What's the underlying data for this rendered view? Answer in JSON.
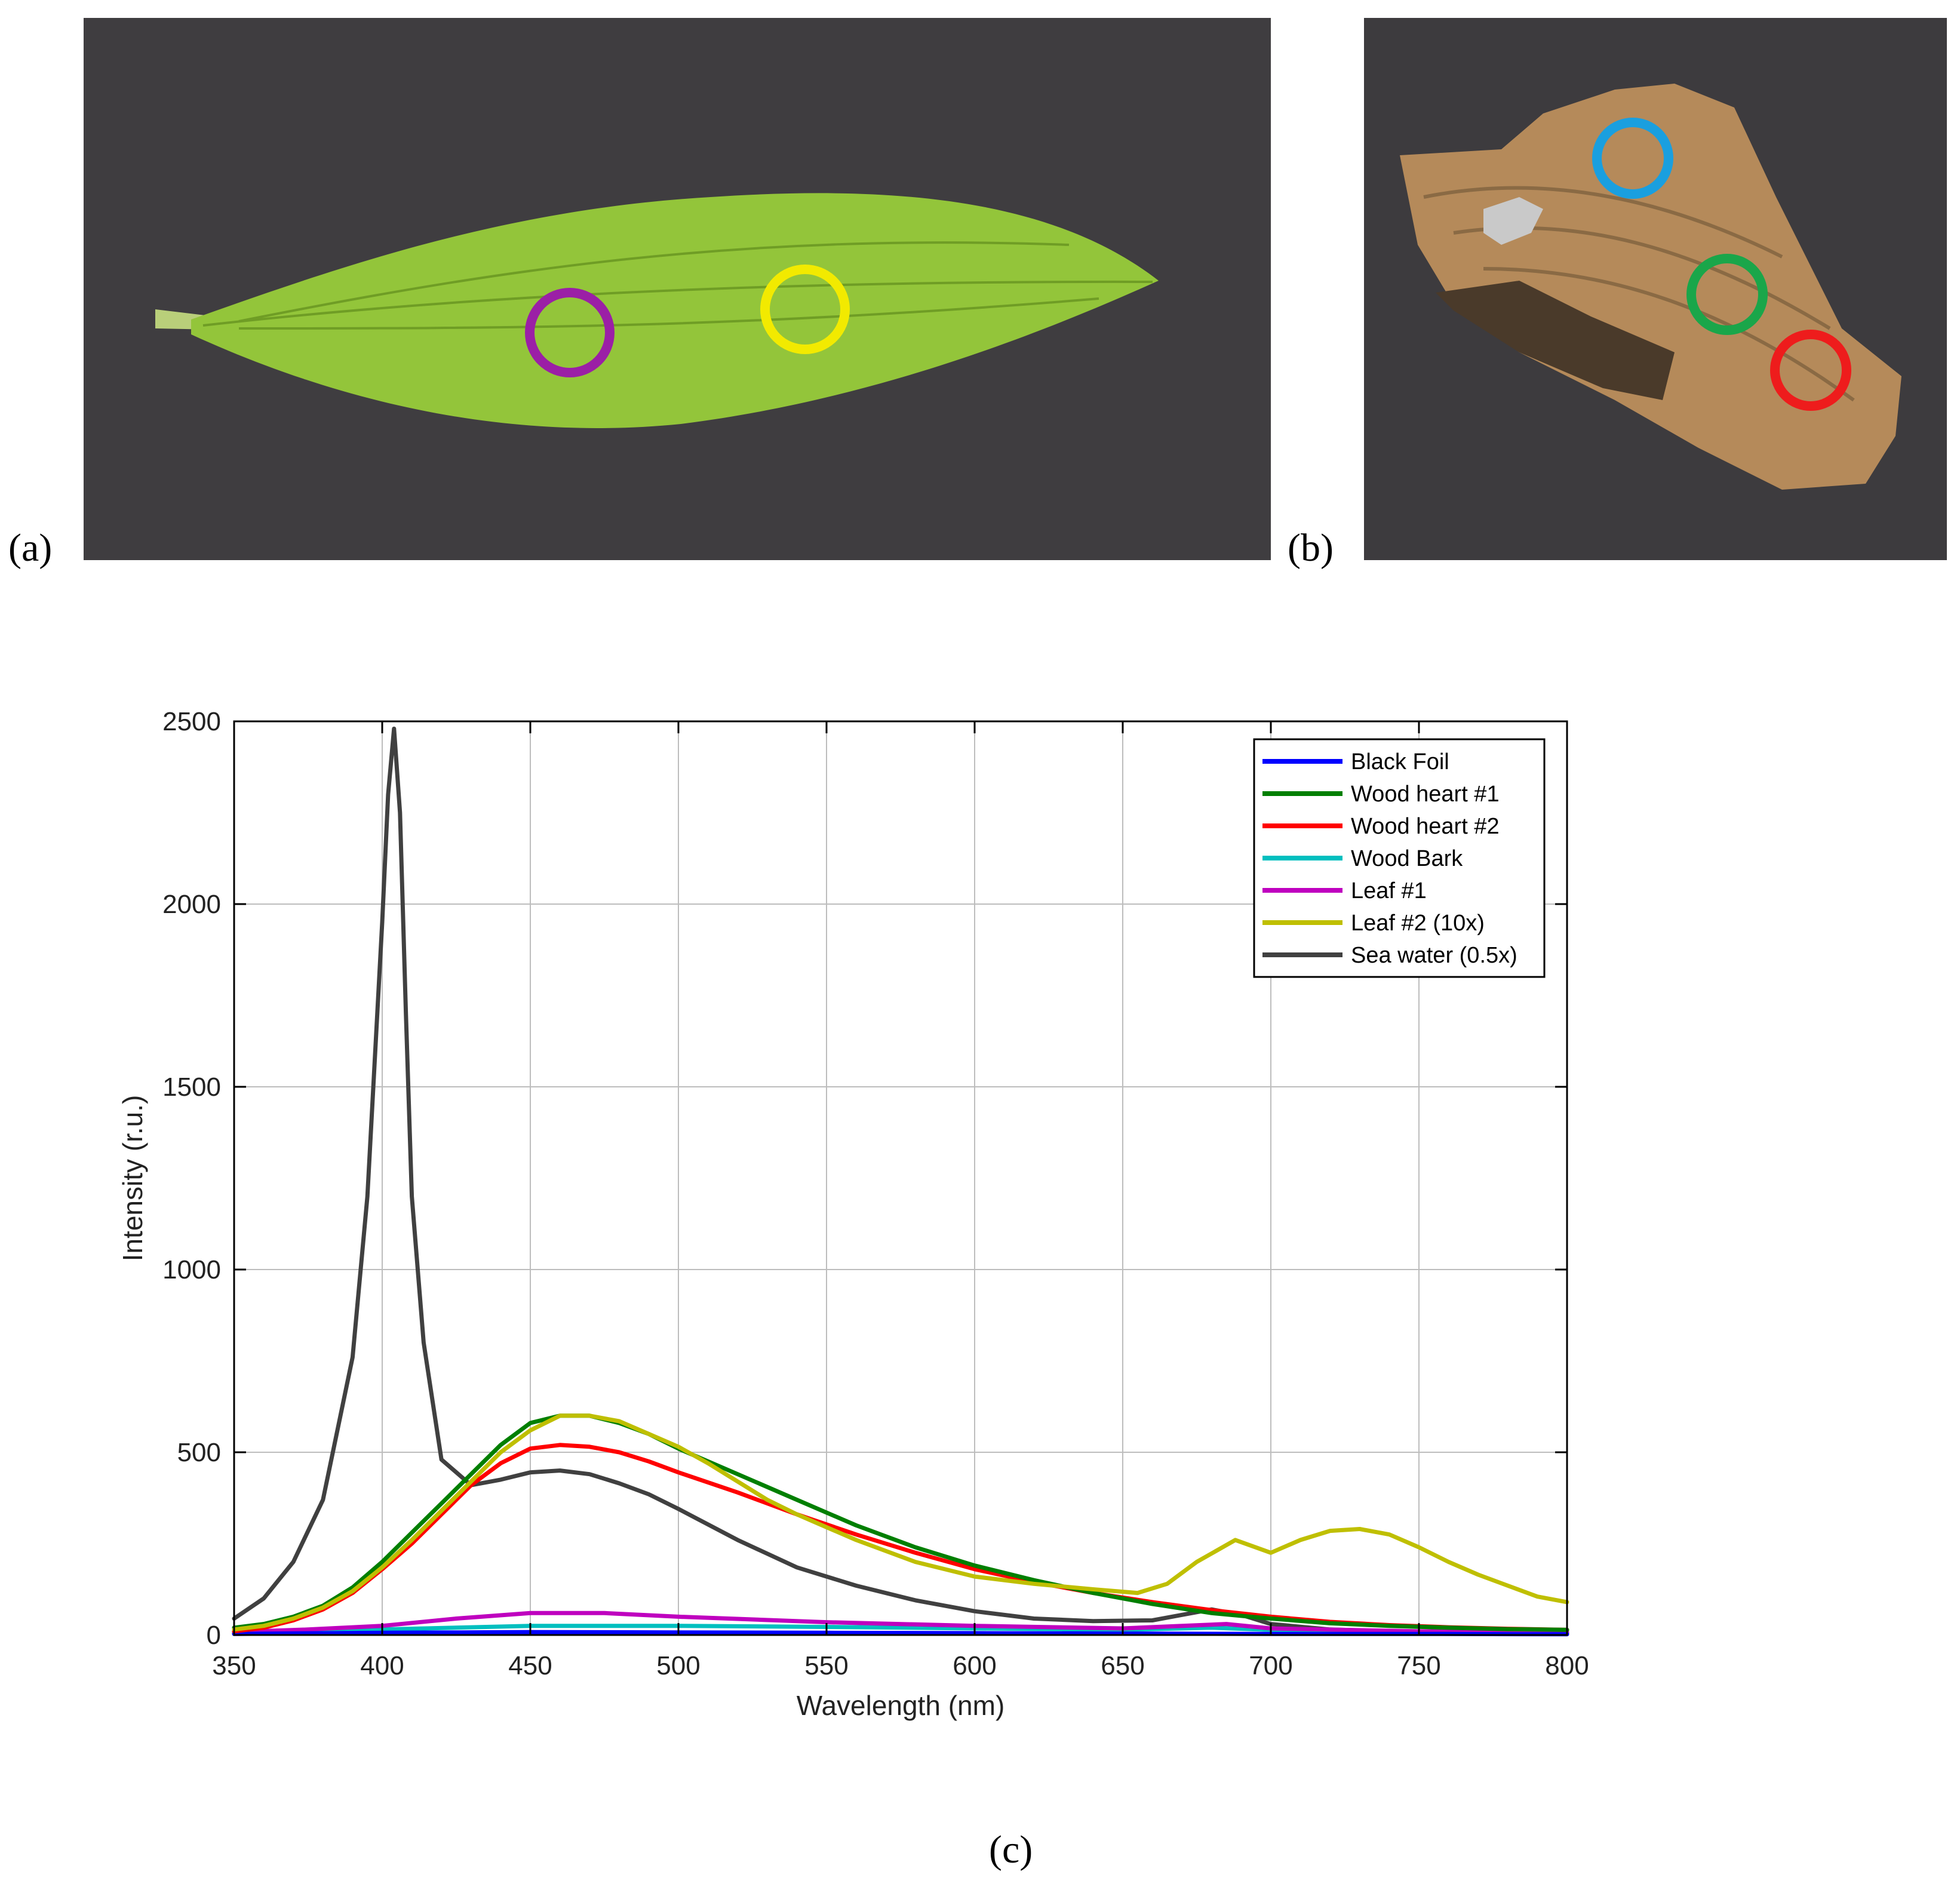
{
  "panels": {
    "a_label": "(a)",
    "b_label": "(b)",
    "c_label": "(c)"
  },
  "photo_a": {
    "subject": "leaf",
    "background_color": "#3f3d40",
    "leaf_color": "#93c53a",
    "markers": [
      {
        "name": "leaf-1-marker",
        "color": "#9b1fa6"
      },
      {
        "name": "leaf-2-marker",
        "color": "#f2ea00"
      }
    ]
  },
  "photo_b": {
    "subject": "wood",
    "background_color": "#3d3b3e",
    "wood_color": "#b58a5a",
    "markers": [
      {
        "name": "wood-bark-marker",
        "color": "#1a9fdf"
      },
      {
        "name": "wood-heart-1-marker",
        "color": "#1aa64a"
      },
      {
        "name": "wood-heart-2-marker",
        "color": "#ee1c1c"
      }
    ]
  },
  "chart_data": {
    "type": "line",
    "xlabel": "Wavelength (nm)",
    "ylabel": "Intensity (r.u.)",
    "xlim": [
      350,
      800
    ],
    "ylim": [
      0,
      2500
    ],
    "xticks": [
      350,
      400,
      450,
      500,
      550,
      600,
      650,
      700,
      750,
      800
    ],
    "yticks": [
      0,
      500,
      1000,
      1500,
      2000,
      2500
    ],
    "grid": true,
    "legend_position": "top-right",
    "series": [
      {
        "name": "Black Foil",
        "color": "#0000ff",
        "x": [
          350,
          400,
          450,
          500,
          550,
          600,
          650,
          700,
          750,
          800
        ],
        "y": [
          3,
          6,
          8,
          7,
          6,
          5,
          4,
          3,
          3,
          2
        ]
      },
      {
        "name": "Wood heart #1",
        "color": "#007f00",
        "x": [
          350,
          360,
          370,
          380,
          390,
          400,
          410,
          420,
          430,
          440,
          450,
          460,
          470,
          480,
          490,
          500,
          520,
          540,
          560,
          580,
          600,
          620,
          640,
          660,
          680,
          700,
          720,
          740,
          760,
          780,
          800
        ],
        "y": [
          20,
          30,
          50,
          80,
          130,
          200,
          280,
          360,
          440,
          520,
          580,
          600,
          600,
          580,
          550,
          510,
          440,
          370,
          300,
          240,
          190,
          150,
          115,
          85,
          60,
          45,
          32,
          25,
          20,
          16,
          14
        ]
      },
      {
        "name": "Wood heart #2",
        "color": "#ff0000",
        "x": [
          350,
          360,
          370,
          380,
          390,
          400,
          410,
          420,
          430,
          440,
          450,
          460,
          470,
          480,
          490,
          500,
          520,
          540,
          560,
          580,
          600,
          620,
          640,
          660,
          680,
          700,
          720,
          740,
          760,
          780,
          800
        ],
        "y": [
          10,
          20,
          40,
          70,
          115,
          180,
          250,
          330,
          410,
          470,
          510,
          520,
          515,
          500,
          475,
          445,
          390,
          330,
          275,
          225,
          180,
          145,
          115,
          90,
          68,
          50,
          36,
          27,
          21,
          17,
          14
        ]
      },
      {
        "name": "Wood Bark",
        "color": "#00bfbf",
        "x": [
          350,
          400,
          450,
          500,
          550,
          600,
          650,
          680,
          700,
          750,
          800
        ],
        "y": [
          5,
          15,
          25,
          25,
          22,
          18,
          14,
          20,
          14,
          8,
          5
        ]
      },
      {
        "name": "Leaf #1",
        "color": "#bf00bf",
        "x": [
          350,
          375,
          400,
          425,
          450,
          475,
          500,
          550,
          600,
          650,
          685,
          700,
          750,
          800
        ],
        "y": [
          8,
          15,
          25,
          45,
          60,
          60,
          50,
          35,
          25,
          18,
          30,
          18,
          10,
          8
        ]
      },
      {
        "name": "Leaf #2 (10x)",
        "color": "#bfbf00",
        "x": [
          350,
          360,
          370,
          380,
          390,
          400,
          410,
          420,
          430,
          440,
          450,
          460,
          470,
          480,
          490,
          500,
          510,
          520,
          530,
          540,
          550,
          560,
          580,
          600,
          620,
          640,
          655,
          665,
          675,
          688,
          700,
          710,
          720,
          730,
          740,
          750,
          760,
          770,
          780,
          790,
          800
        ],
        "y": [
          15,
          25,
          45,
          75,
          120,
          185,
          260,
          340,
          420,
          500,
          560,
          600,
          600,
          585,
          550,
          515,
          470,
          420,
          370,
          330,
          295,
          260,
          200,
          160,
          140,
          125,
          115,
          140,
          200,
          260,
          225,
          260,
          285,
          290,
          275,
          240,
          200,
          165,
          135,
          105,
          90
        ]
      },
      {
        "name": "Sea water (0.5x)",
        "color": "#404040",
        "x": [
          350,
          360,
          370,
          380,
          390,
          395,
          400,
          402,
          404,
          406,
          408,
          410,
          414,
          420,
          430,
          440,
          450,
          460,
          470,
          480,
          490,
          500,
          520,
          540,
          560,
          580,
          600,
          620,
          640,
          660,
          670,
          680,
          690,
          700,
          720,
          750,
          800
        ],
        "y": [
          45,
          100,
          200,
          370,
          760,
          1200,
          1950,
          2300,
          2480,
          2250,
          1700,
          1200,
          800,
          480,
          410,
          425,
          445,
          450,
          440,
          415,
          385,
          345,
          260,
          185,
          135,
          95,
          65,
          45,
          38,
          40,
          55,
          70,
          55,
          30,
          15,
          8,
          5
        ]
      }
    ]
  }
}
